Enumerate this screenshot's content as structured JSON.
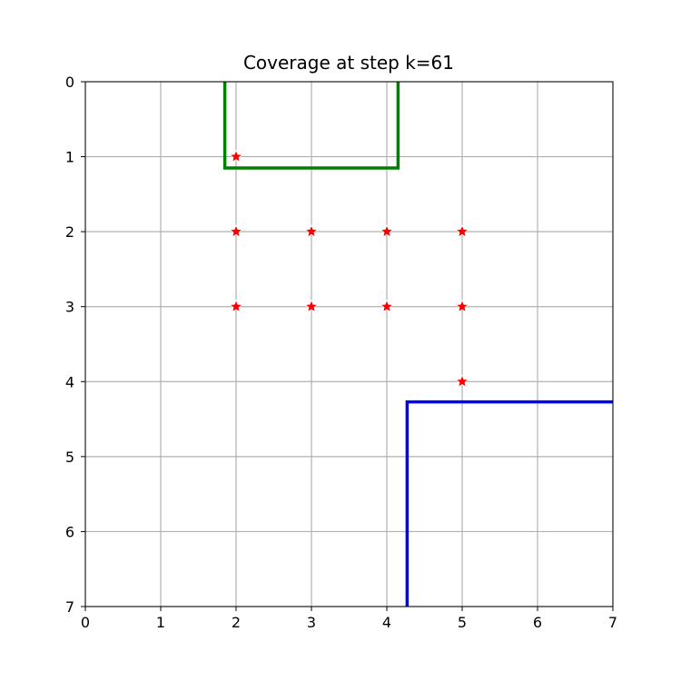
{
  "chart_data": {
    "type": "scatter",
    "title": "Coverage at step k=61",
    "xlabel": "",
    "ylabel": "",
    "xlim": [
      0,
      7
    ],
    "ylim": [
      7,
      0
    ],
    "y_inverted": true,
    "grid": true,
    "xticks": [
      "0",
      "1",
      "2",
      "3",
      "4",
      "5",
      "6",
      "7"
    ],
    "yticks": [
      "0",
      "1",
      "2",
      "3",
      "4",
      "5",
      "6",
      "7"
    ],
    "points": [
      {
        "x": 2,
        "y": 1
      },
      {
        "x": 2,
        "y": 2
      },
      {
        "x": 3,
        "y": 2
      },
      {
        "x": 4,
        "y": 2
      },
      {
        "x": 5,
        "y": 2
      },
      {
        "x": 2,
        "y": 3
      },
      {
        "x": 3,
        "y": 3
      },
      {
        "x": 4,
        "y": 3
      },
      {
        "x": 5,
        "y": 3
      },
      {
        "x": 5,
        "y": 4
      }
    ],
    "point_marker": "star",
    "point_color": "#ff0000",
    "regions": [
      {
        "color": "#008000",
        "path": [
          [
            1.85,
            0
          ],
          [
            1.85,
            1.15
          ],
          [
            4.15,
            1.15
          ],
          [
            4.15,
            0
          ]
        ]
      },
      {
        "color": "#0000ff",
        "path": [
          [
            4.27,
            7
          ],
          [
            4.27,
            4.27
          ],
          [
            7,
            4.27
          ]
        ]
      }
    ]
  }
}
